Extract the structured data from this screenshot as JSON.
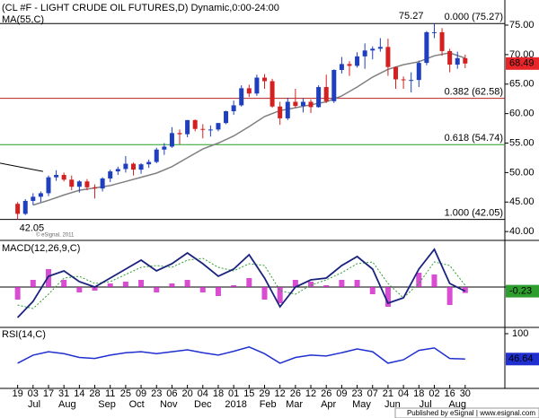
{
  "chart_data": [
    {
      "type": "candlestick",
      "title": "(CL #F - LIGHT CRUDE OIL FUTURES,D) Dynamic,0:00-24:00",
      "watermark": "© eSignal, 2011",
      "x": [
        0,
        7,
        14,
        21,
        28,
        35,
        42,
        49,
        56,
        63,
        70,
        77,
        84,
        91,
        98,
        105,
        112,
        119,
        126,
        133,
        140,
        147,
        154,
        161,
        168,
        175,
        182,
        189,
        196,
        203,
        210,
        217,
        224,
        231,
        238,
        245,
        252,
        259,
        266,
        273,
        280,
        287,
        294,
        301,
        308,
        315,
        322,
        329,
        336,
        343,
        350,
        357,
        364,
        371,
        378,
        385,
        392,
        399,
        406
      ],
      "open": [
        44.7,
        43.0,
        45.2,
        45.9,
        46.5,
        49.2,
        49.6,
        48.8,
        47.6,
        48.5,
        47.5,
        47.3,
        49.0,
        50.2,
        50.6,
        51.5,
        50.5,
        51.4,
        51.8,
        53.9,
        54.4,
        56.7,
        56.5,
        58.9,
        57.4,
        57.3,
        57.3,
        58.4,
        60.4,
        61.4,
        64.3,
        63.4,
        66.1,
        65.5,
        61.2,
        59.2,
        62.0,
        61.3,
        62.0,
        61.1,
        64.5,
        62.1,
        67.4,
        68.4,
        68.1,
        69.7,
        70.7,
        71.0,
        71.3,
        67.9,
        65.8,
        65.7,
        65.7,
        68.6,
        73.8,
        73.8,
        70.6,
        68.3,
        69.4
      ],
      "high": [
        45.0,
        45.5,
        46.5,
        46.8,
        49.5,
        50.4,
        50.0,
        49.5,
        48.7,
        48.9,
        48.0,
        49.2,
        50.5,
        51.0,
        52.8,
        51.7,
        51.6,
        52.2,
        54.2,
        55.0,
        57.7,
        57.3,
        58.9,
        59.0,
        58.2,
        58.0,
        58.4,
        60.5,
        62.2,
        64.8,
        64.9,
        66.6,
        66.7,
        65.9,
        62.0,
        62.7,
        64.2,
        62.6,
        62.4,
        64.8,
        66.6,
        67.5,
        69.6,
        68.9,
        70.4,
        71.9,
        71.4,
        72.8,
        72.7,
        68.0,
        66.3,
        67.0,
        69.0,
        74.0,
        75.27,
        74.5,
        71.0,
        70.5,
        70.0
      ],
      "low": [
        42.05,
        42.8,
        44.5,
        45.0,
        46.0,
        48.6,
        48.5,
        47.0,
        46.6,
        47.0,
        45.6,
        46.8,
        48.4,
        49.6,
        50.0,
        49.5,
        49.8,
        50.8,
        51.6,
        53.0,
        54.2,
        54.8,
        56.0,
        57.0,
        55.8,
        56.1,
        57.0,
        58.2,
        59.8,
        61.2,
        62.8,
        63.0,
        64.2,
        61.0,
        58.1,
        58.9,
        61.0,
        60.2,
        60.1,
        61.0,
        61.8,
        61.8,
        66.8,
        66.4,
        67.8,
        67.6,
        69.2,
        70.5,
        66.4,
        64.2,
        64.2,
        63.6,
        64.5,
        68.2,
        72.8,
        69.8,
        67.0,
        67.6,
        67.7
      ],
      "close": [
        43.0,
        45.2,
        45.9,
        46.5,
        49.2,
        49.6,
        48.8,
        47.6,
        48.5,
        47.5,
        47.3,
        49.0,
        50.2,
        50.6,
        51.5,
        50.5,
        51.4,
        51.8,
        53.9,
        54.4,
        56.7,
        56.5,
        58.9,
        57.4,
        57.3,
        57.3,
        58.4,
        60.4,
        61.4,
        64.3,
        63.4,
        66.1,
        65.5,
        61.2,
        59.2,
        62.0,
        61.3,
        62.0,
        61.1,
        64.5,
        62.1,
        67.4,
        68.4,
        68.1,
        69.7,
        70.7,
        71.0,
        71.3,
        67.9,
        65.8,
        65.7,
        65.7,
        68.6,
        73.8,
        73.8,
        70.6,
        68.3,
        69.4,
        68.49
      ],
      "up_color": "#1f3fbf",
      "down_color": "#d42020",
      "series": [
        {
          "name": "MA(55,C)",
          "color": "#808080",
          "x": [
            14,
            28,
            42,
            56,
            70,
            84,
            98,
            112,
            126,
            140,
            154,
            168,
            182,
            196,
            210,
            224,
            238,
            252,
            266,
            280,
            294,
            308,
            322,
            336,
            350,
            364,
            378,
            392,
            406
          ],
          "values": [
            44.5,
            45.3,
            46.2,
            47.0,
            47.4,
            47.8,
            48.5,
            49.2,
            49.9,
            51.0,
            52.5,
            54.0,
            55.0,
            56.2,
            57.8,
            59.5,
            60.5,
            61.0,
            61.5,
            62.0,
            63.0,
            64.5,
            66.2,
            67.5,
            68.3,
            68.8,
            69.8,
            70.3,
            69.4
          ]
        }
      ],
      "trendlines": [
        {
          "x": [
            -16,
            23
          ],
          "values": [
            51.6,
            50.2
          ],
          "color": "#000000"
        }
      ],
      "levels": [
        {
          "value": 75.27,
          "label": "0.000 (75.27)",
          "color": "#000000"
        },
        {
          "value": 62.58,
          "label": "0.382 (62.58)",
          "color": "#b22222"
        },
        {
          "value": 54.74,
          "label": "0.618 (54.74)",
          "color": "#22a022"
        },
        {
          "value": 42.05,
          "label": "1.000 (42.05)",
          "color": "#000000"
        }
      ],
      "extremes": [
        {
          "x": 378,
          "value": 75.27
        },
        {
          "x": 0,
          "value": 42.05
        }
      ],
      "last_price": {
        "value": 68.49,
        "color": "#e8262a"
      },
      "xlim": [
        -16,
        442
      ],
      "ylim": [
        38.5,
        78.5
      ],
      "yticks": [
        {
          "value": 40,
          "label": "40.00"
        },
        {
          "value": 45,
          "label": "45.00"
        },
        {
          "value": 50,
          "label": "50.00"
        },
        {
          "value": 55,
          "label": "55.00"
        },
        {
          "value": 60,
          "label": "60.00"
        },
        {
          "value": 65,
          "label": "65.00"
        },
        {
          "value": 70,
          "label": "70.00"
        },
        {
          "value": 75,
          "label": "75.00"
        }
      ],
      "xticks": [
        {
          "value": 0,
          "label": "19"
        },
        {
          "value": 14,
          "label": "03"
        },
        {
          "value": 28,
          "label": "17"
        },
        {
          "value": 42,
          "label": "31"
        },
        {
          "value": 56,
          "label": "14"
        },
        {
          "value": 70,
          "label": "28"
        },
        {
          "value": 84,
          "label": "11"
        },
        {
          "value": 98,
          "label": "25"
        },
        {
          "value": 112,
          "label": "09"
        },
        {
          "value": 126,
          "label": "23"
        },
        {
          "value": 140,
          "label": "06"
        },
        {
          "value": 154,
          "label": "20"
        },
        {
          "value": 168,
          "label": "04"
        },
        {
          "value": 182,
          "label": "18"
        },
        {
          "value": 196,
          "label": "01"
        },
        {
          "value": 210,
          "label": "15"
        },
        {
          "value": 224,
          "label": "29"
        },
        {
          "value": 238,
          "label": "12"
        },
        {
          "value": 252,
          "label": "26"
        },
        {
          "value": 266,
          "label": "12"
        },
        {
          "value": 280,
          "label": "26"
        },
        {
          "value": 294,
          "label": "09"
        },
        {
          "value": 308,
          "label": "23"
        },
        {
          "value": 322,
          "label": "07"
        },
        {
          "value": 336,
          "label": "21"
        },
        {
          "value": 350,
          "label": "04"
        },
        {
          "value": 364,
          "label": "18"
        },
        {
          "value": 378,
          "label": "02"
        },
        {
          "value": 392,
          "label": "16"
        },
        {
          "value": 406,
          "label": "30"
        }
      ],
      "month_ticks": [
        {
          "value": 15,
          "label": "Jul"
        },
        {
          "value": 45,
          "label": "Aug"
        },
        {
          "value": 81,
          "label": "Sep"
        },
        {
          "value": 108,
          "label": "Oct"
        },
        {
          "value": 137,
          "label": "Nov"
        },
        {
          "value": 168,
          "label": "Dec"
        },
        {
          "value": 198,
          "label": "2018"
        },
        {
          "value": 227,
          "label": "Feb"
        },
        {
          "value": 251,
          "label": "Mar"
        },
        {
          "value": 282,
          "label": "Apr"
        },
        {
          "value": 312,
          "label": "May"
        },
        {
          "value": 340,
          "label": "Jun"
        },
        {
          "value": 370,
          "label": "Jul"
        },
        {
          "value": 399,
          "label": "Aug"
        }
      ]
    },
    {
      "type": "macd",
      "title": "MACD(12,26,9,C)",
      "x": [
        0,
        14,
        28,
        42,
        56,
        70,
        84,
        98,
        112,
        126,
        140,
        154,
        168,
        182,
        196,
        210,
        224,
        238,
        252,
        266,
        280,
        294,
        308,
        322,
        336,
        350,
        364,
        378,
        392,
        406
      ],
      "macd": {
        "color": "#1a237e",
        "values": [
          -1.7,
          -0.8,
          0.6,
          0.9,
          0.3,
          0.0,
          0.5,
          1.0,
          1.5,
          0.9,
          1.3,
          1.9,
          1.3,
          0.6,
          1.0,
          1.8,
          0.5,
          -1.1,
          0.0,
          0.4,
          0.5,
          1.2,
          1.7,
          1.0,
          -0.9,
          -0.6,
          1.0,
          2.1,
          0.2,
          -0.23
        ]
      },
      "signal": {
        "color": "#2e9e2e",
        "values": [
          -1.0,
          -1.2,
          -0.4,
          0.5,
          0.6,
          0.2,
          0.3,
          0.7,
          1.1,
          1.2,
          1.1,
          1.5,
          1.6,
          1.1,
          0.9,
          1.3,
          1.2,
          -0.2,
          -0.4,
          0.1,
          0.4,
          0.8,
          1.3,
          1.4,
          0.2,
          -0.6,
          0.2,
          1.4,
          1.2,
          0.1
        ]
      },
      "histogram": {
        "color": "#d020c8",
        "values": [
          -0.7,
          0.4,
          1.0,
          0.4,
          -0.3,
          -0.2,
          0.2,
          0.3,
          0.4,
          -0.3,
          0.2,
          0.4,
          -0.3,
          -0.5,
          0.1,
          0.5,
          -0.7,
          -0.9,
          0.4,
          0.3,
          0.1,
          0.4,
          0.4,
          -0.4,
          -1.1,
          0.0,
          0.8,
          0.7,
          -1.0,
          -0.33
        ]
      },
      "last_value": {
        "value": -0.23,
        "color": "#2e9e2e"
      },
      "xlim": [
        -16,
        442
      ],
      "ylim": [
        -2.2,
        2.5
      ]
    },
    {
      "type": "rsi",
      "title": "RSI(14,C)",
      "x": [
        0,
        14,
        28,
        42,
        56,
        70,
        84,
        98,
        112,
        126,
        140,
        154,
        168,
        182,
        196,
        210,
        224,
        238,
        252,
        266,
        280,
        294,
        308,
        322,
        336,
        350,
        364,
        378,
        392,
        406
      ],
      "series": [
        {
          "name": "RSI(14,C)",
          "color": "#1f2fd0",
          "values": [
            38,
            55,
            62,
            58,
            50,
            48,
            55,
            60,
            62,
            58,
            62,
            66,
            60,
            55,
            63,
            72,
            58,
            38,
            50,
            55,
            53,
            60,
            68,
            62,
            38,
            45,
            65,
            70,
            48,
            46.64
          ]
        }
      ],
      "last_value": {
        "value": 46.64,
        "color": "#1f2fd0"
      },
      "xlim": [
        -16,
        442
      ],
      "ylim": [
        0,
        100
      ],
      "yticks": [
        100
      ]
    }
  ],
  "footer": "Published by eSignal | www.esignal.com"
}
